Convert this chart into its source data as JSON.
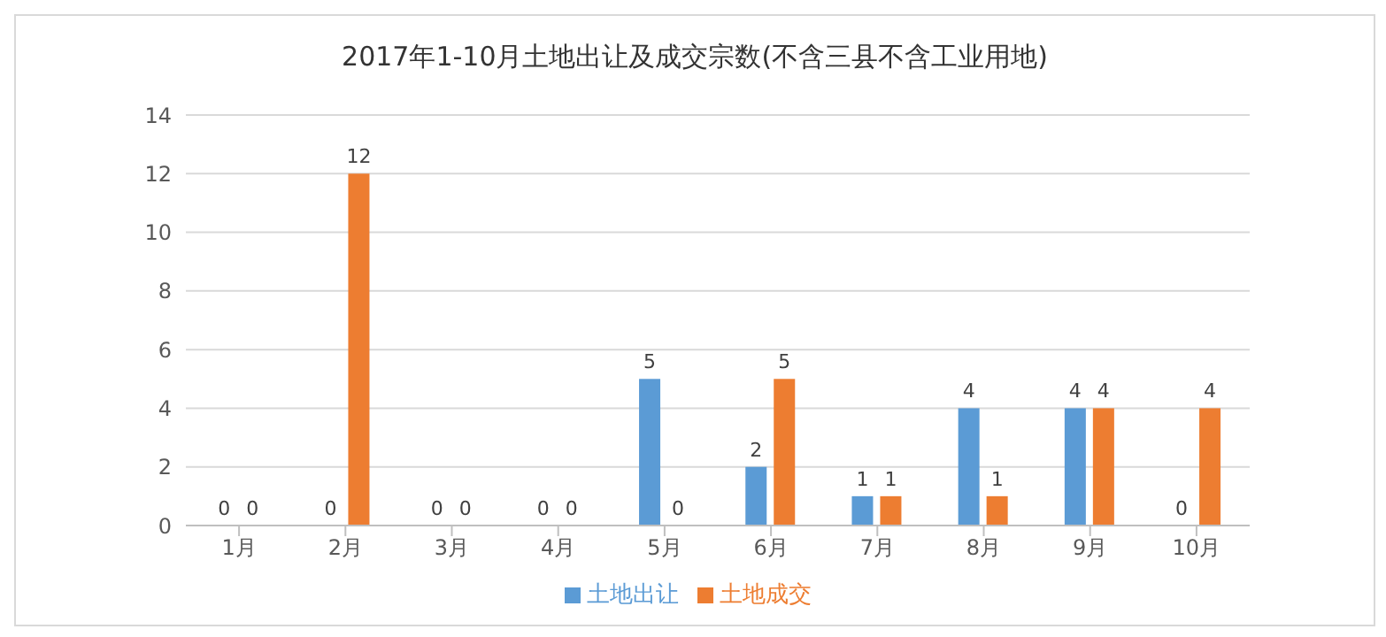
{
  "chart_data": {
    "type": "bar",
    "title": "2017年1-10月土地出让及成交宗数(不含三县不含工业用地)",
    "categories": [
      "1月",
      "2月",
      "3月",
      "4月",
      "5月",
      "6月",
      "7月",
      "8月",
      "9月",
      "10月"
    ],
    "series": [
      {
        "name": "土地出让",
        "color": "#5b9bd5",
        "values": [
          0,
          0,
          0,
          0,
          5,
          2,
          1,
          4,
          4,
          0
        ]
      },
      {
        "name": "土地成交",
        "color": "#ed7d31",
        "values": [
          0,
          12,
          0,
          0,
          0,
          5,
          1,
          1,
          4,
          4
        ]
      }
    ],
    "ylim": [
      0,
      14
    ],
    "yticks": [
      0,
      2,
      4,
      6,
      8,
      10,
      12,
      14
    ],
    "grid": "y",
    "legend": "bottom",
    "data_labels": true
  }
}
